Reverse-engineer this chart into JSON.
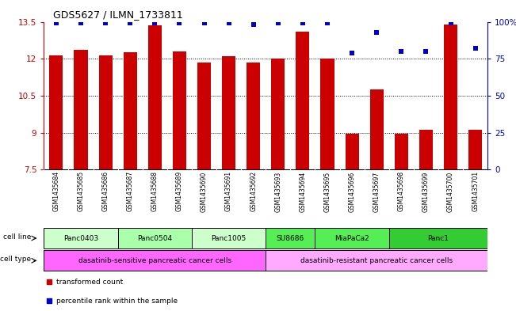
{
  "title": "GDS5627 / ILMN_1733811",
  "samples": [
    "GSM1435684",
    "GSM1435685",
    "GSM1435686",
    "GSM1435687",
    "GSM1435688",
    "GSM1435689",
    "GSM1435690",
    "GSM1435691",
    "GSM1435692",
    "GSM1435693",
    "GSM1435694",
    "GSM1435695",
    "GSM1435696",
    "GSM1435697",
    "GSM1435698",
    "GSM1435699",
    "GSM1435700",
    "GSM1435701"
  ],
  "bar_values": [
    12.15,
    12.35,
    12.15,
    12.25,
    13.35,
    12.3,
    11.85,
    12.1,
    11.85,
    12.0,
    13.1,
    12.0,
    8.95,
    10.75,
    8.95,
    9.1,
    13.4,
    9.1
  ],
  "dot_values": [
    99,
    99,
    99,
    99,
    99,
    99,
    99,
    99,
    98,
    99,
    99,
    99,
    79,
    93,
    80,
    80,
    99,
    82
  ],
  "ylim_left": [
    7.5,
    13.5
  ],
  "ylim_right": [
    0,
    100
  ],
  "yticks_left": [
    7.5,
    9.0,
    10.5,
    12.0,
    13.5
  ],
  "yticks_right": [
    0,
    25,
    50,
    75,
    100
  ],
  "ytick_labels_left": [
    "7.5",
    "9",
    "10.5",
    "12",
    "13.5"
  ],
  "ytick_labels_right": [
    "0",
    "25",
    "50",
    "75",
    "100%"
  ],
  "bar_color": "#cc0000",
  "dot_color": "#0000cc",
  "cell_lines": [
    {
      "label": "Panc0403",
      "start": 0,
      "end": 3,
      "color": "#ccffcc"
    },
    {
      "label": "Panc0504",
      "start": 3,
      "end": 6,
      "color": "#aaffaa"
    },
    {
      "label": "Panc1005",
      "start": 6,
      "end": 9,
      "color": "#ccffcc"
    },
    {
      "label": "SU8686",
      "start": 9,
      "end": 11,
      "color": "#55ee55"
    },
    {
      "label": "MiaPaCa2",
      "start": 11,
      "end": 14,
      "color": "#55ee55"
    },
    {
      "label": "Panc1",
      "start": 14,
      "end": 18,
      "color": "#33cc33"
    }
  ],
  "cell_types": [
    {
      "label": "dasatinib-sensitive pancreatic cancer cells",
      "start": 0,
      "end": 9,
      "color": "#ff66ff"
    },
    {
      "label": "dasatinib-resistant pancreatic cancer cells",
      "start": 9,
      "end": 18,
      "color": "#ffaaff"
    }
  ],
  "legend_items": [
    {
      "label": "transformed count",
      "color": "#cc0000"
    },
    {
      "label": "percentile rank within the sample",
      "color": "#0000cc"
    }
  ],
  "sample_area_color": "#cccccc",
  "bg_color": "#ffffff",
  "grid_color": "#000000",
  "tick_color_left": "#cc0000",
  "tick_color_right": "#0000cc",
  "n_samples": 18,
  "bar_width": 0.55
}
